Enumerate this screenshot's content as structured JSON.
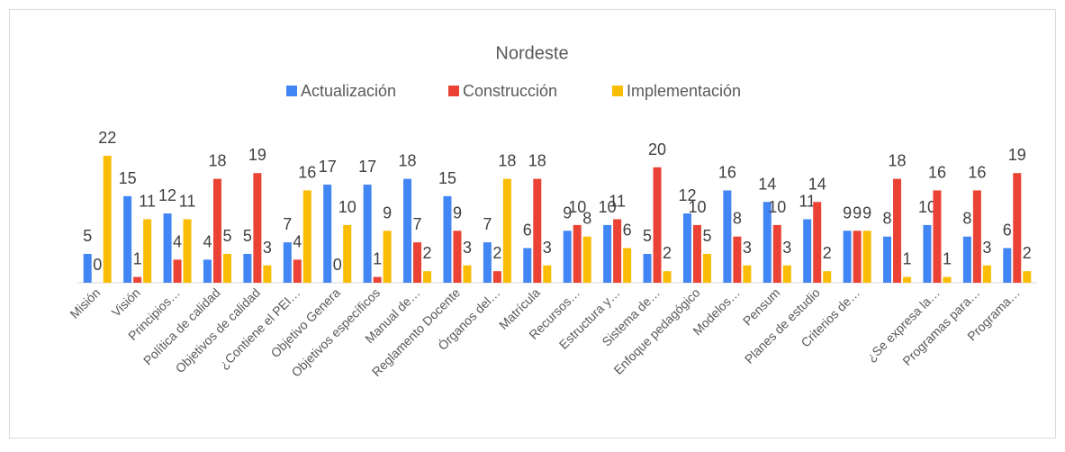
{
  "chart_data": {
    "type": "bar",
    "title": "Nordeste",
    "categories": [
      "Misión",
      "Visión",
      "Principios…",
      "Política de calidad",
      "Objetivos de calidad",
      "¿Contiene el PEI…",
      "Objetivo Genera",
      "Objetivos específicos",
      "Manual de…",
      "Reglamento Docente",
      "Órganos del…",
      "Matrícula",
      "Recursos…",
      "Estructura y…",
      "Sistema de…",
      "Enfoque pedagógico",
      "Modelos…",
      "Pensum",
      "Planes de estudio",
      "Criterios de…",
      null,
      "¿Se expresa la…",
      "Programas para…",
      "Programa…"
    ],
    "series": [
      {
        "name": "Actualización",
        "color": "#4285f4",
        "values": [
          5,
          15,
          12,
          4,
          5,
          7,
          17,
          17,
          18,
          15,
          7,
          6,
          9,
          10,
          5,
          12,
          16,
          14,
          11,
          9,
          8,
          10,
          8,
          6
        ]
      },
      {
        "name": "Construcción",
        "color": "#ea4335",
        "values": [
          0,
          1,
          4,
          18,
          19,
          4,
          0,
          1,
          7,
          9,
          2,
          18,
          10,
          11,
          20,
          10,
          8,
          10,
          14,
          9,
          18,
          16,
          16,
          19
        ]
      },
      {
        "name": "Implementación",
        "color": "#fbbc04",
        "values": [
          22,
          11,
          11,
          5,
          3,
          16,
          10,
          9,
          2,
          3,
          18,
          3,
          8,
          6,
          2,
          5,
          3,
          3,
          2,
          9,
          1,
          1,
          3,
          2
        ]
      }
    ],
    "ylim": [
      0,
      22
    ],
    "legend": "top"
  }
}
